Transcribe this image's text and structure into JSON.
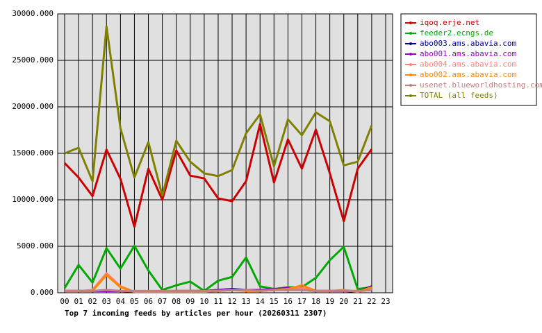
{
  "chart_data": {
    "type": "line",
    "title": "Top 7 incoming feeds by articles per hour (20260311 2307)",
    "categories": [
      "00",
      "01",
      "02",
      "03",
      "04",
      "05",
      "06",
      "07",
      "08",
      "09",
      "10",
      "11",
      "12",
      "13",
      "14",
      "15",
      "16",
      "17",
      "18",
      "19",
      "20",
      "21",
      "22",
      "23"
    ],
    "ylim": [
      0,
      30000
    ],
    "yticks": [
      {
        "value": 0,
        "label": "0.000"
      },
      {
        "value": 5000,
        "label": "5000.000"
      },
      {
        "value": 10000,
        "label": "10000.000"
      },
      {
        "value": 15000,
        "label": "15000.000"
      },
      {
        "value": 20000,
        "label": "20000.000"
      },
      {
        "value": 25000,
        "label": "25000.000"
      },
      {
        "value": 30000,
        "label": "30000.000"
      }
    ],
    "grid": true,
    "legend": "right",
    "series": [
      {
        "name": "iqoq.erje.net",
        "color": "#cc0000",
        "values": [
          13950,
          12400,
          10400,
          15400,
          12250,
          7100,
          13350,
          10000,
          15300,
          12600,
          12300,
          10150,
          9850,
          12000,
          18150,
          11850,
          16500,
          13350,
          17550,
          12850,
          7700,
          13350,
          15450,
          null
        ]
      },
      {
        "name": "feeder2.ecngs.de",
        "color": "#00aa00",
        "values": [
          500,
          3000,
          1100,
          4800,
          2600,
          5050,
          2400,
          300,
          800,
          1200,
          200,
          1300,
          1700,
          3800,
          700,
          400,
          600,
          600,
          1600,
          3500,
          4950,
          400,
          600,
          null
        ]
      },
      {
        "name": "abo003.ams.abavia.com",
        "color": "#000099",
        "values": [
          200,
          200,
          200,
          200,
          200,
          100,
          100,
          100,
          200,
          200,
          200,
          300,
          400,
          300,
          200,
          300,
          400,
          300,
          200,
          200,
          200,
          100,
          700,
          null
        ]
      },
      {
        "name": "abo001.ams.abavia.com",
        "color": "#9900cc",
        "values": [
          200,
          200,
          200,
          200,
          200,
          100,
          100,
          200,
          200,
          200,
          200,
          300,
          300,
          300,
          300,
          400,
          500,
          400,
          200,
          200,
          200,
          200,
          300,
          null
        ]
      },
      {
        "name": "abo004.ams.abavia.com",
        "color": "#ff7f7f",
        "values": [
          200,
          200,
          300,
          2100,
          700,
          100,
          100,
          100,
          200,
          200,
          200,
          200,
          300,
          300,
          200,
          300,
          400,
          500,
          200,
          200,
          300,
          100,
          400,
          null
        ]
      },
      {
        "name": "abo002.ams.abavia.com",
        "color": "#ff8800",
        "values": [
          200,
          200,
          200,
          1900,
          600,
          100,
          100,
          100,
          100,
          100,
          100,
          200,
          300,
          200,
          200,
          300,
          400,
          800,
          200,
          200,
          300,
          100,
          600,
          null
        ]
      },
      {
        "name": "usenet.blueworldhosting.com",
        "color": "#c08080",
        "values": [
          200,
          200,
          200,
          300,
          200,
          200,
          200,
          200,
          200,
          200,
          200,
          200,
          300,
          300,
          200,
          300,
          300,
          300,
          200,
          200,
          200,
          200,
          300,
          null
        ]
      },
      {
        "name": "TOTAL (all feeds)",
        "color": "#808000",
        "values": [
          15000,
          15600,
          12000,
          28650,
          17700,
          12400,
          16200,
          10450,
          16350,
          14100,
          12850,
          12550,
          13200,
          17150,
          19200,
          13600,
          18650,
          16950,
          19400,
          18450,
          13700,
          14100,
          18000,
          null
        ]
      }
    ]
  }
}
